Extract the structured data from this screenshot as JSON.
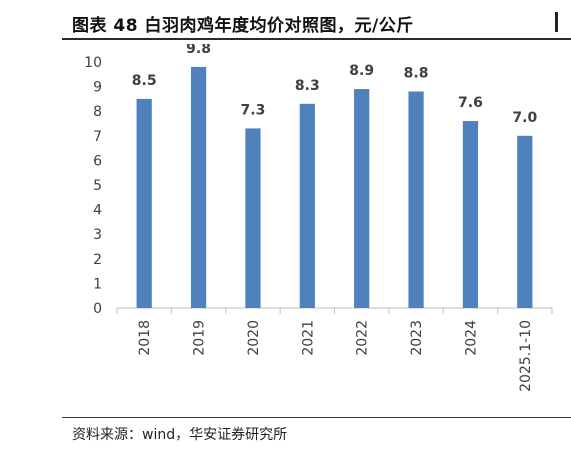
{
  "figure": {
    "title": "图表 48 白羽肉鸡年度均价对照图，元/公斤",
    "source": "资料来源：wind，华安证券研究所"
  },
  "colors": {
    "bar": "#4f81bd",
    "axis": "#bfbfbf",
    "text": "#404040"
  },
  "chart_data": {
    "type": "bar",
    "title": "",
    "xlabel": "",
    "ylabel": "",
    "categories": [
      "2018",
      "2019",
      "2020",
      "2021",
      "2022",
      "2023",
      "2024",
      "2025.1-10"
    ],
    "values": [
      8.5,
      9.8,
      7.3,
      8.3,
      8.9,
      8.8,
      7.6,
      7.0
    ],
    "data_labels": [
      "8.5",
      "9.8",
      "7.3",
      "8.3",
      "8.9",
      "8.8",
      "7.6",
      "7.0"
    ],
    "ylim": [
      0,
      10
    ],
    "yticks": [
      0,
      1,
      2,
      3,
      4,
      5,
      6,
      7,
      8,
      9,
      10
    ],
    "grid": false,
    "legend": "none"
  }
}
